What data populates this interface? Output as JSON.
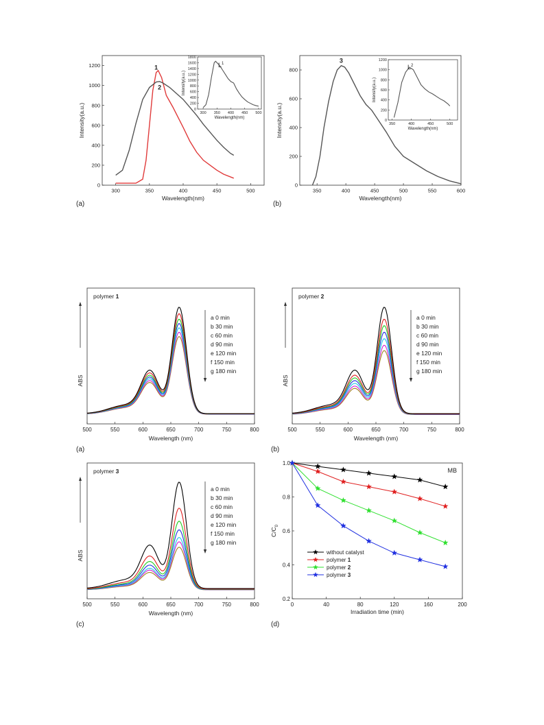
{
  "chart_data": [
    {
      "id": "fig1a",
      "type": "line",
      "panel_label": "(a)",
      "xlabel": "Wavelength(nm)",
      "ylabel": "Intensity(a.u.)",
      "xlim": [
        280,
        520
      ],
      "ylim": [
        0,
        1300
      ],
      "xticks": [
        300,
        350,
        400,
        450,
        500
      ],
      "yticks": [
        0,
        200,
        400,
        600,
        800,
        1000,
        1200
      ],
      "series": [
        {
          "name": "1",
          "color": "#e03a3a",
          "x": [
            300,
            320,
            330,
            340,
            345,
            350,
            355,
            360,
            363,
            368,
            375,
            385,
            400,
            410,
            420,
            430,
            440,
            450,
            460,
            475
          ],
          "y": [
            20,
            20,
            20,
            60,
            250,
            600,
            950,
            1130,
            1150,
            1080,
            900,
            780,
            580,
            440,
            330,
            250,
            200,
            150,
            110,
            70
          ]
        },
        {
          "name": "2",
          "color": "#555555",
          "x": [
            300,
            310,
            320,
            330,
            340,
            350,
            360,
            365,
            370,
            380,
            390,
            400,
            410,
            420,
            430,
            440,
            450,
            460,
            470,
            475
          ],
          "y": [
            100,
            150,
            350,
            620,
            860,
            980,
            1035,
            1040,
            1025,
            980,
            920,
            860,
            780,
            700,
            610,
            530,
            450,
            380,
            320,
            300
          ]
        }
      ],
      "point_labels": [
        {
          "text": "1",
          "x": 360,
          "y": 1160
        },
        {
          "text": "2",
          "x": 365,
          "y": 960
        }
      ],
      "inset": {
        "type": "line",
        "label": "L",
        "label_sup": "1",
        "xlabel": "Wavelength(nm)",
        "ylabel": "Intensity(a.u.)",
        "xlim": [
          280,
          510
        ],
        "ylim": [
          0,
          1800
        ],
        "xticks": [
          300,
          350,
          400,
          450,
          500
        ],
        "yticks": [
          0,
          200,
          400,
          600,
          800,
          1000,
          1200,
          1400,
          1600,
          1800
        ],
        "series": [
          {
            "color": "#555555",
            "x": [
              300,
              310,
              320,
              330,
              340,
              345,
              350,
              360,
              370,
              380,
              390,
              400,
              410,
              420,
              430,
              440,
              450,
              460,
              470,
              480,
              490,
              500
            ],
            "y": [
              50,
              150,
              500,
              1100,
              1600,
              1650,
              1600,
              1500,
              1350,
              1200,
              1050,
              950,
              900,
              700,
              550,
              420,
              330,
              250,
              200,
              150,
              120,
              100
            ]
          }
        ]
      }
    },
    {
      "id": "fig1b",
      "type": "line",
      "panel_label": "(b)",
      "xlabel": "Wavelength(nm)",
      "ylabel": "Intensity(a.u.)",
      "xlim": [
        320,
        600
      ],
      "ylim": [
        0,
        900
      ],
      "xticks": [
        350,
        400,
        450,
        500,
        550,
        600
      ],
      "yticks": [
        0,
        200,
        400,
        600,
        800
      ],
      "series": [
        {
          "name": "3",
          "color": "#555555",
          "x": [
            342,
            348,
            355,
            362,
            370,
            378,
            385,
            392,
            398,
            405,
            415,
            425,
            435,
            445,
            455,
            470,
            485,
            500,
            520,
            540,
            560,
            580,
            600
          ],
          "y": [
            0,
            60,
            200,
            400,
            580,
            720,
            800,
            830,
            820,
            780,
            700,
            620,
            560,
            520,
            460,
            370,
            270,
            200,
            150,
            100,
            60,
            30,
            10
          ]
        }
      ],
      "point_labels": [
        {
          "text": "3",
          "x": 392,
          "y": 850
        }
      ],
      "inset": {
        "type": "line",
        "label": "L",
        "label_sup": "2",
        "xlabel": "Wavelength(nm)",
        "ylabel": "Intensity(a.u.)",
        "xlim": [
          340,
          520
        ],
        "ylim": [
          0,
          1200
        ],
        "xticks": [
          350,
          400,
          450,
          500
        ],
        "yticks": [
          0,
          200,
          400,
          600,
          800,
          1000,
          1200
        ],
        "series": [
          {
            "color": "#555555",
            "x": [
              355,
              365,
              375,
              385,
              395,
              405,
              415,
              425,
              435,
              445,
              455,
              465,
              475,
              485,
              495,
              500
            ],
            "y": [
              50,
              350,
              750,
              950,
              1050,
              1000,
              850,
              700,
              620,
              560,
              520,
              470,
              420,
              380,
              320,
              280
            ]
          }
        ]
      }
    },
    {
      "id": "fig2a",
      "type": "line",
      "panel_label": "(a)",
      "title": "polymer",
      "title_bold": "1",
      "xlabel": "Wavelength (nm)",
      "ylabel": "ABS",
      "xlim": [
        500,
        800
      ],
      "xticks": [
        500,
        550,
        600,
        650,
        700,
        750,
        800
      ],
      "legend": [
        "a  0  min",
        "b  30 min",
        "c  60 min",
        "d  90 min",
        "e 120 min",
        "f  150 min",
        "g 180 min"
      ],
      "series": [
        {
          "name": "a",
          "color": "#000000",
          "scale": 1.0
        },
        {
          "name": "b",
          "color": "#e02020",
          "scale": 0.94
        },
        {
          "name": "c",
          "color": "#20cc20",
          "scale": 0.89
        },
        {
          "name": "d",
          "color": "#2030e0",
          "scale": 0.85
        },
        {
          "name": "e",
          "color": "#20c8e8",
          "scale": 0.81
        },
        {
          "name": "f",
          "color": "#d020d0",
          "scale": 0.77
        },
        {
          "name": "g",
          "color": "#a08020",
          "scale": 0.73
        }
      ]
    },
    {
      "id": "fig2b",
      "type": "line",
      "panel_label": "(b)",
      "title": "polymer",
      "title_bold": "2",
      "xlabel": "Wavelength (nm)",
      "ylabel": "ABS",
      "xlim": [
        500,
        800
      ],
      "xticks": [
        500,
        550,
        600,
        650,
        700,
        750,
        800
      ],
      "legend": [
        "a  0  min",
        "b  30 min",
        "c  60 min",
        "d  90 min",
        "e 120 min",
        "f  150 min",
        "g 180 min"
      ],
      "series": [
        {
          "name": "a",
          "color": "#000000",
          "scale": 1.0
        },
        {
          "name": "b",
          "color": "#e02020",
          "scale": 0.89
        },
        {
          "name": "c",
          "color": "#20cc20",
          "scale": 0.83
        },
        {
          "name": "d",
          "color": "#2030e0",
          "scale": 0.77
        },
        {
          "name": "e",
          "color": "#20c8e8",
          "scale": 0.71
        },
        {
          "name": "f",
          "color": "#d020d0",
          "scale": 0.65
        },
        {
          "name": "g",
          "color": "#a08020",
          "scale": 0.6
        }
      ]
    },
    {
      "id": "fig2c",
      "type": "line",
      "panel_label": "(c)",
      "title": "polymer",
      "title_bold": "3",
      "xlabel": "Wavelength (nm)",
      "ylabel": "ABS",
      "xlim": [
        500,
        800
      ],
      "xticks": [
        500,
        550,
        600,
        650,
        700,
        750,
        800
      ],
      "legend": [
        "a  0  min",
        "b  30 min",
        "c  60 min",
        "d  90 min",
        "e 120 min",
        "f  150 min",
        "g 180 min"
      ],
      "series": [
        {
          "name": "a",
          "color": "#000000",
          "scale": 1.0
        },
        {
          "name": "b",
          "color": "#e02020",
          "scale": 0.76
        },
        {
          "name": "c",
          "color": "#20cc20",
          "scale": 0.64
        },
        {
          "name": "d",
          "color": "#2030e0",
          "scale": 0.56
        },
        {
          "name": "e",
          "color": "#20c8e8",
          "scale": 0.49
        },
        {
          "name": "f",
          "color": "#d020d0",
          "scale": 0.45
        },
        {
          "name": "g",
          "color": "#a08020",
          "scale": 0.4
        }
      ]
    },
    {
      "id": "fig2d",
      "type": "line",
      "panel_label": "(d)",
      "annotation": "MB",
      "xlabel": "Irradiation time (min)",
      "ylabel": "C/C",
      "ylabel_sub": "0",
      "xlim": [
        0,
        200
      ],
      "ylim": [
        0.2,
        1.0
      ],
      "xticks": [
        0,
        40,
        80,
        120,
        160,
        200
      ],
      "yticks": [
        0.2,
        0.4,
        0.6,
        0.8,
        1.0
      ],
      "x": [
        0,
        30,
        60,
        90,
        120,
        150,
        180
      ],
      "series": [
        {
          "name": "without catalyst",
          "color": "#000000",
          "values": [
            1.0,
            0.98,
            0.96,
            0.94,
            0.92,
            0.9,
            0.86
          ]
        },
        {
          "name": "polymer",
          "name_bold": "1",
          "color": "#e02020",
          "values": [
            1.0,
            0.95,
            0.89,
            0.86,
            0.83,
            0.79,
            0.745
          ]
        },
        {
          "name": "polymer",
          "name_bold": "2",
          "color": "#30e030",
          "values": [
            1.0,
            0.85,
            0.78,
            0.72,
            0.66,
            0.59,
            0.53
          ]
        },
        {
          "name": "polymer",
          "name_bold": "3",
          "color": "#2030e0",
          "values": [
            1.0,
            0.75,
            0.63,
            0.54,
            0.47,
            0.43,
            0.39
          ]
        }
      ]
    }
  ]
}
